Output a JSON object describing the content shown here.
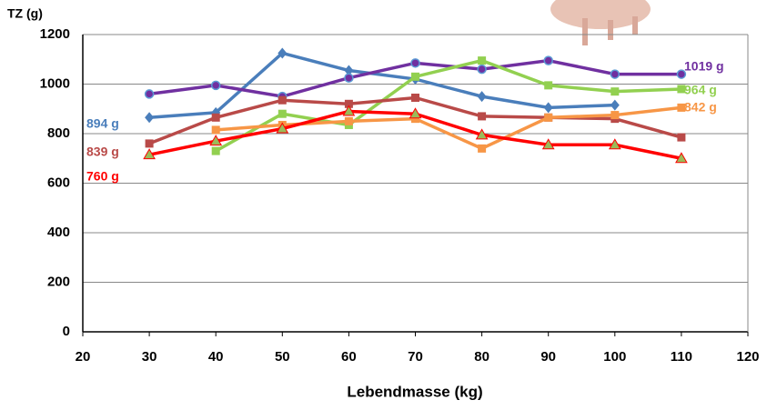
{
  "chart_data": {
    "type": "line",
    "y_label": "TZ (g)",
    "x_label": "Lebendmasse (kg)",
    "x": [
      30,
      40,
      50,
      60,
      70,
      80,
      90,
      100,
      110
    ],
    "xlim": [
      20,
      120
    ],
    "xticks": [
      20,
      30,
      40,
      50,
      60,
      70,
      80,
      90,
      100,
      110,
      120
    ],
    "ylim": [
      0,
      1200
    ],
    "yticks": [
      0,
      200,
      400,
      600,
      800,
      1000,
      1200
    ],
    "grid": true,
    "series": [
      {
        "name": "894 g",
        "color": "#4a7ebb",
        "marker": "diamond",
        "label_side": "left",
        "values": [
          865,
          885,
          1125,
          1055,
          1020,
          950,
          905,
          915,
          null
        ]
      },
      {
        "name": "1019 g",
        "color": "#7030a0",
        "marker": "circle",
        "label_side": "right",
        "values": [
          960,
          995,
          950,
          1025,
          1085,
          1060,
          1095,
          1040,
          1040
        ]
      },
      {
        "name": "964 g",
        "color": "#92d050",
        "marker": "square",
        "label_side": "right",
        "values": [
          null,
          730,
          880,
          835,
          1030,
          1095,
          995,
          970,
          980
        ]
      },
      {
        "name": "839 g",
        "color": "#b94a48",
        "marker": "square",
        "label_side": "left",
        "values": [
          760,
          865,
          935,
          920,
          945,
          870,
          865,
          860,
          785
        ]
      },
      {
        "name": "842 g",
        "color": "#f79646",
        "marker": "square",
        "label_side": "right",
        "values": [
          null,
          815,
          835,
          850,
          860,
          740,
          865,
          875,
          905
        ]
      },
      {
        "name": "760 g",
        "color": "#ff0000",
        "marker": "triangle",
        "label_side": "left",
        "values": [
          715,
          770,
          820,
          890,
          880,
          795,
          755,
          755,
          700
        ]
      }
    ]
  }
}
